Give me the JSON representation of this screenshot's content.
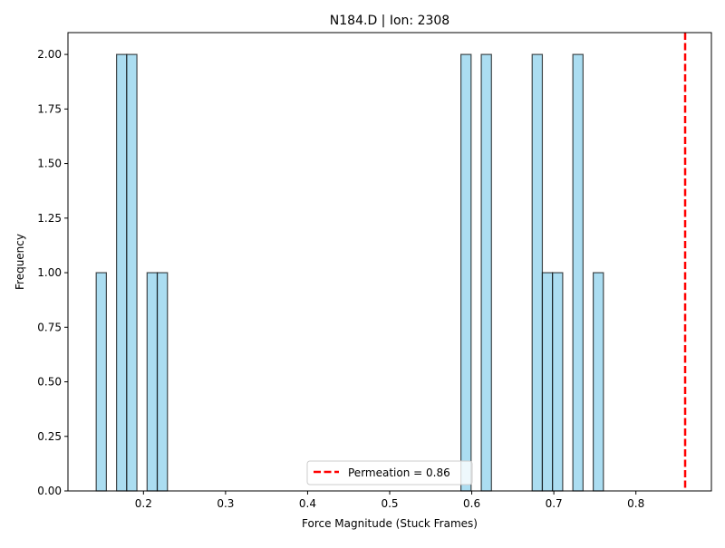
{
  "chart_data": {
    "type": "bar",
    "title": "N184.D | Ion: 2308",
    "xlabel": "Force Magnitude (Stuck Frames)",
    "ylabel": "Frequency",
    "xlim": [
      0.108,
      0.892
    ],
    "ylim": [
      0,
      2.1
    ],
    "bin_width": 0.0124,
    "xticks": [
      "0.2",
      "0.3",
      "0.4",
      "0.5",
      "0.6",
      "0.7",
      "0.8"
    ],
    "xtick_values": [
      0.2,
      0.3,
      0.4,
      0.5,
      0.6,
      0.7,
      0.8
    ],
    "yticks": [
      "0.00",
      "0.25",
      "0.50",
      "0.75",
      "1.00",
      "1.25",
      "1.50",
      "1.75",
      "2.00"
    ],
    "ytick_values": [
      0,
      0.25,
      0.5,
      0.75,
      1.0,
      1.25,
      1.5,
      1.75,
      2.0
    ],
    "bins": [
      {
        "x0": 0.1424,
        "count": 1
      },
      {
        "x0": 0.1672,
        "count": 2
      },
      {
        "x0": 0.1796,
        "count": 2
      },
      {
        "x0": 0.2044,
        "count": 1
      },
      {
        "x0": 0.2168,
        "count": 1
      },
      {
        "x0": 0.5868,
        "count": 2
      },
      {
        "x0": 0.6116,
        "count": 2
      },
      {
        "x0": 0.6736,
        "count": 2
      },
      {
        "x0": 0.686,
        "count": 1
      },
      {
        "x0": 0.6984,
        "count": 1
      },
      {
        "x0": 0.7232,
        "count": 2
      },
      {
        "x0": 0.748,
        "count": 1
      }
    ],
    "bar_color": "#87ceeb",
    "bar_edge_color": "#000000",
    "reference_line": {
      "x": 0.86,
      "label": "Permeation = 0.86",
      "color": "#ff0000",
      "style": "dashed"
    },
    "legend": {
      "position": "bottom-center",
      "entries": [
        "Permeation = 0.86"
      ]
    },
    "grid": false
  }
}
